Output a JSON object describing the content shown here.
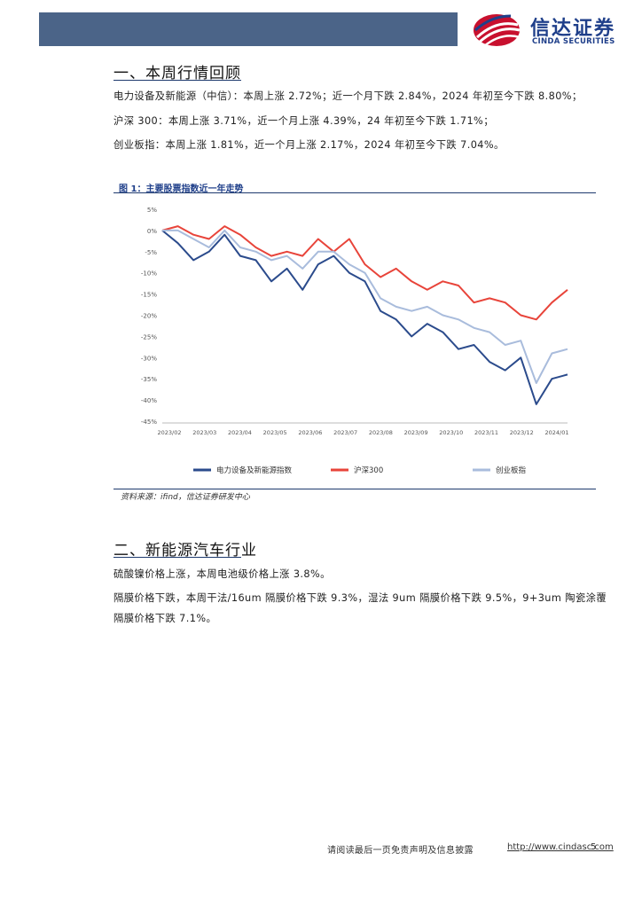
{
  "header": {
    "brand_cn": "信达证券",
    "brand_en": "CINDA SECURITIES",
    "accent_color": "#4b6488",
    "logo_icon": "globe-logo-icon"
  },
  "section1": {
    "title": "一、本周行情回顾",
    "paragraphs": [
      "电力设备及新能源（中信）：本周上涨 2.72%；近一个月下跌 2.84%，2024 年初至今下跌 8.80%；",
      "沪深 300：本周上涨 3.71%，近一个月上涨 4.39%，24 年初至今下跌 1.71%；",
      "创业板指：本周上涨 1.81%，近一个月上涨 2.17%，2024 年初至今下跌 7.04%。"
    ]
  },
  "figure1": {
    "title": "图 1：主要股票指数近一年走势",
    "source": "资料来源：ifind，信达证券研发中心"
  },
  "chart_data": {
    "type": "line",
    "title": "",
    "xlabel": "",
    "ylabel": "",
    "ylim": [
      -45,
      5
    ],
    "y_ticks": [
      "5%",
      "0%",
      "-5%",
      "-10%",
      "-15%",
      "-20%",
      "-25%",
      "-30%",
      "-35%",
      "-40%",
      "-45%"
    ],
    "x_ticks": [
      "2023/02",
      "2023/03",
      "2023/04",
      "2023/05",
      "2023/06",
      "2023/07",
      "2023/08",
      "2023/09",
      "2023/10",
      "2023/11",
      "2023/12",
      "2024/01"
    ],
    "x": [
      "2023/02/06",
      "2023/02/20",
      "2023/03/06",
      "2023/03/20",
      "2023/04/03",
      "2023/04/17",
      "2023/05/02",
      "2023/05/15",
      "2023/05/29",
      "2023/06/12",
      "2023/06/26",
      "2023/07/10",
      "2023/07/24",
      "2023/08/07",
      "2023/08/21",
      "2023/09/04",
      "2023/09/18",
      "2023/10/09",
      "2023/10/23",
      "2023/11/06",
      "2023/11/20",
      "2023/12/04",
      "2023/12/18",
      "2024/01/02",
      "2024/01/15",
      "2024/01/29",
      "2024/02/05"
    ],
    "legend_position": "bottom",
    "grid": false,
    "series": [
      {
        "name": "电力设备及新能源指数",
        "color": "#2b4b8c",
        "values": [
          0,
          -3,
          -7,
          -5,
          -1,
          -6,
          -7,
          -12,
          -9,
          -14,
          -8,
          -6,
          -10,
          -12,
          -19,
          -21,
          -25,
          -22,
          -24,
          -28,
          -27,
          -31,
          -33,
          -30,
          -41,
          -35,
          -34
        ]
      },
      {
        "name": "沪深300",
        "color": "#e8443a",
        "values": [
          0,
          1,
          -1,
          -2,
          1,
          -1,
          -4,
          -6,
          -5,
          -6,
          -2,
          -5,
          -2,
          -8,
          -11,
          -9,
          -12,
          -14,
          -12,
          -13,
          -17,
          -16,
          -17,
          -20,
          -21,
          -17,
          -14
        ]
      },
      {
        "name": "创业板指",
        "color": "#a9bcdc",
        "values": [
          0,
          0,
          -2,
          -4,
          0,
          -4,
          -5,
          -7,
          -6,
          -9,
          -5,
          -5,
          -8,
          -10,
          -16,
          -18,
          -19,
          -18,
          -20,
          -21,
          -23,
          -24,
          -27,
          -26,
          -36,
          -29,
          -28
        ]
      }
    ]
  },
  "section2": {
    "title": "二、新能源汽车行业",
    "paragraphs": [
      "硫酸镍价格上涨，本周电池级价格上涨 3.8%。",
      "隔膜价格下跌，本周干法/16um 隔膜价格下跌 9.3%，湿法 9um 隔膜价格下跌 9.5%，9+3um 陶瓷涂覆",
      "隔膜价格下跌 7.1%。"
    ]
  },
  "footer": {
    "disclaimer": "请阅读最后一页免责声明及信息披露",
    "link": "http://www.cindasc.com",
    "page": "5"
  }
}
